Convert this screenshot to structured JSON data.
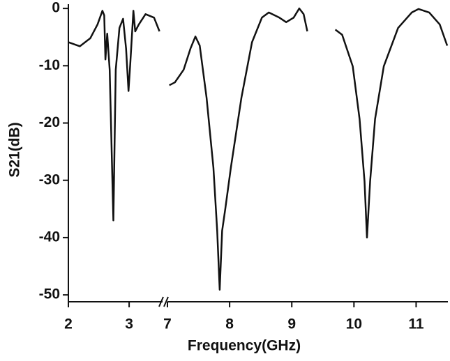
{
  "chart_data": {
    "type": "line",
    "xlabel": "Frequency(GHz)",
    "ylabel": "S21(dB)",
    "color": "#111111",
    "ylim": [
      -51.2,
      0.5
    ],
    "yticks": [
      0,
      -10,
      -20,
      -30,
      -40,
      -50
    ],
    "segments": [
      {
        "xlim": [
          2,
          3.55
        ],
        "xticks": [
          2,
          3
        ],
        "x": [
          2,
          2.19,
          2.36,
          2.48,
          2.56,
          2.59,
          2.61,
          2.64,
          2.68,
          2.74,
          2.78,
          2.84,
          2.9,
          2.95,
          2.99,
          3.02,
          3.07,
          3.1,
          3.16,
          3.27,
          3.41,
          3.5
        ],
        "values": [
          -5.9,
          -6.6,
          -5.2,
          -2.8,
          -0.4,
          -1.2,
          -8.9,
          -4.4,
          -10.7,
          -37,
          -10.7,
          -3.4,
          -1.8,
          -7,
          -14.4,
          -9.5,
          -0.4,
          -4,
          -2.8,
          -1,
          -1.6,
          -4
        ]
      },
      {
        "xlim": [
          7,
          11.5
        ],
        "xticks": [
          7,
          8,
          9,
          10,
          11
        ],
        "x": [
          7.03,
          7.12,
          7.26,
          7.37,
          7.45,
          7.52,
          7.63,
          7.74,
          7.8,
          7.84,
          7.88,
          7.93,
          8.02,
          8.19,
          8.36,
          8.52,
          8.63,
          8.8,
          8.91,
          9.03,
          9.12,
          9.19,
          9.25,
          9.5,
          9.7,
          9.81,
          9.98,
          10.09,
          10.17,
          10.21,
          10.26,
          10.34,
          10.48,
          10.71,
          10.93,
          11.04,
          11.21,
          11.38,
          11.5
        ],
        "values": [
          -13.4,
          -12.9,
          -10.7,
          -7,
          -4.9,
          -6.5,
          -15.6,
          -27.8,
          -38.8,
          -49.1,
          -38.8,
          -35,
          -27.8,
          -15.6,
          -5.9,
          -1.6,
          -0.7,
          -1.6,
          -2.4,
          -1.6,
          0,
          -1,
          -4,
          null,
          -3.7,
          -4.6,
          -10.1,
          -19.3,
          -30.2,
          -40,
          -30.2,
          -19.3,
          -10.1,
          -3.4,
          -0.7,
          -0.1,
          -0.7,
          -2.8,
          -6.5
        ]
      }
    ]
  }
}
